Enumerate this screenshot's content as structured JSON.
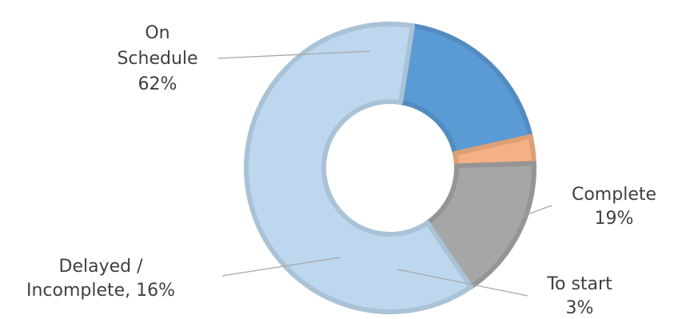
{
  "chart_data": {
    "type": "pie",
    "variant": "donut",
    "slices": [
      {
        "label_lines": [
          "Complete",
          "19%"
        ],
        "label": "Complete",
        "value": 19,
        "color": "#5b9bd5"
      },
      {
        "label_lines": [
          "To start",
          "3%"
        ],
        "label": "To start",
        "value": 3,
        "color": "#f4b183"
      },
      {
        "label_lines": [
          "Delayed /",
          "Incomplete, 16%"
        ],
        "label": "Delayed / Incomplete",
        "value": 16,
        "color": "#a6a6a6"
      },
      {
        "label_lines": [
          "On",
          "Schedule",
          "62%"
        ],
        "label": "On Schedule",
        "value": 62,
        "color": "#bdd7ee"
      }
    ],
    "legend": "none"
  }
}
